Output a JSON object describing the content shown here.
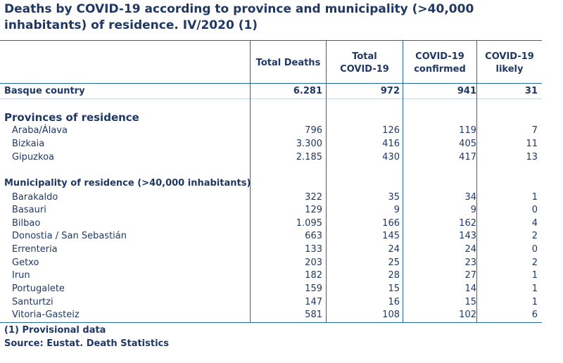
{
  "title": "Deaths by COVID-19 according to province and municipality (>40,000 inhabitants) of residence. IV/2020 (1)",
  "columns": {
    "total_deaths": "Total Deaths",
    "total_covid_1": "Total",
    "total_covid_2": "COVID-19",
    "confirmed_1": "COVID-19",
    "confirmed_2": "confirmed",
    "likely_1": "COVID-19",
    "likely_2": "likely"
  },
  "basque": {
    "label": "Basque country",
    "v": [
      "6.281",
      "972",
      "941",
      "31"
    ]
  },
  "provinces_title": "Provinces of residence",
  "provinces": [
    {
      "label": "Araba/Álava",
      "v": [
        "796",
        "126",
        "119",
        "7"
      ]
    },
    {
      "label": "Bizkaia",
      "v": [
        "3.300",
        "416",
        "405",
        "11"
      ]
    },
    {
      "label": "Gipuzkoa",
      "v": [
        "2.185",
        "430",
        "417",
        "13"
      ]
    }
  ],
  "municipalities_title": "Municipality of residence (>40,000 inhabitants)",
  "municipalities": [
    {
      "label": "Barakaldo",
      "v": [
        "322",
        "35",
        "34",
        "1"
      ]
    },
    {
      "label": "Basauri",
      "v": [
        "129",
        "9",
        "9",
        "0"
      ]
    },
    {
      "label": "Bilbao",
      "v": [
        "1.095",
        "166",
        "162",
        "4"
      ]
    },
    {
      "label": "Donostia / San Sebastián",
      "v": [
        "663",
        "145",
        "143",
        "2"
      ]
    },
    {
      "label": "Errenteria",
      "v": [
        "133",
        "24",
        "24",
        "0"
      ]
    },
    {
      "label": "Getxo",
      "v": [
        "203",
        "25",
        "23",
        "2"
      ]
    },
    {
      "label": "Irun",
      "v": [
        "182",
        "28",
        "27",
        "1"
      ]
    },
    {
      "label": "Portugalete",
      "v": [
        "159",
        "15",
        "14",
        "1"
      ]
    },
    {
      "label": "Santurtzi",
      "v": [
        "147",
        "16",
        "15",
        "1"
      ]
    },
    {
      "label": "Vitoria-Gasteiz",
      "v": [
        "581",
        "108",
        "102",
        "6"
      ]
    }
  ],
  "footnote": "(1) Provisional data",
  "source": "Source: Eustat. Death Statistics"
}
